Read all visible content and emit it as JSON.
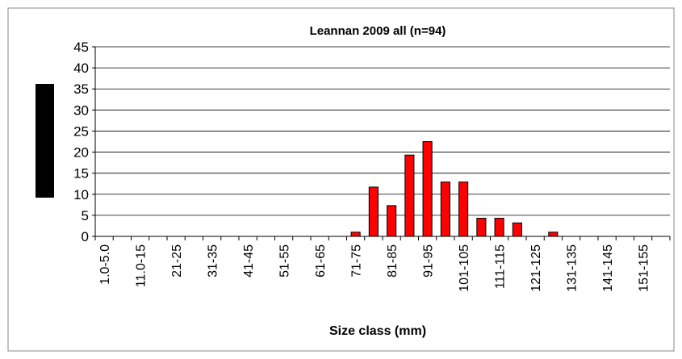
{
  "chart_data": {
    "type": "bar",
    "title": "Leannan 2009 all (n=94)",
    "x_label": "Size class (mm)",
    "categories": [
      "1.0-5.0",
      null,
      "11.0-15",
      null,
      "21-25",
      null,
      "31-35",
      null,
      "41-45",
      null,
      "51-55",
      null,
      "61-65",
      null,
      "71-75",
      null,
      "81-85",
      null,
      "91-95",
      null,
      "101-105",
      null,
      "111-115",
      null,
      "121-125",
      null,
      "131-135",
      null,
      "141-145",
      null,
      "151-155",
      null
    ],
    "values": [
      0,
      0,
      0,
      0,
      0,
      0,
      0,
      0,
      0,
      0,
      0,
      0,
      0,
      0,
      1,
      11.7,
      7.3,
      19.3,
      22.5,
      12.9,
      12.9,
      4.3,
      4.3,
      3.2,
      0,
      1,
      0,
      0,
      0,
      0,
      0,
      0
    ],
    "color": "#ff0000",
    "ylim": [
      0,
      45
    ],
    "yticks": [
      0,
      5,
      10,
      15,
      20,
      25,
      30,
      35,
      40,
      45
    ],
    "grid": true
  }
}
